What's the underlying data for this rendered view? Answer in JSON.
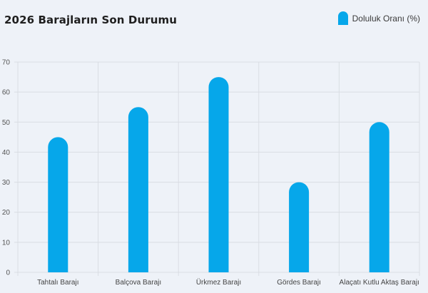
{
  "chart_data": {
    "type": "bar",
    "title": "2026 Barajların Son Durumu",
    "categories": [
      "Tahtalı Barajı",
      "Balçova Barajı",
      "Ürkmez Barajı",
      "Gördes Barajı",
      "Alaçatı Kutlu Aktaş Barajı"
    ],
    "series": [
      {
        "name": "Doluluk Oranı (%)",
        "values": [
          45,
          55,
          65,
          30,
          50
        ],
        "color": "#06a7ea"
      }
    ],
    "ylim": [
      0,
      70
    ],
    "yticks": [
      0,
      10,
      20,
      30,
      40,
      50,
      60,
      70
    ],
    "grid": true,
    "legend_position": "top-right"
  }
}
